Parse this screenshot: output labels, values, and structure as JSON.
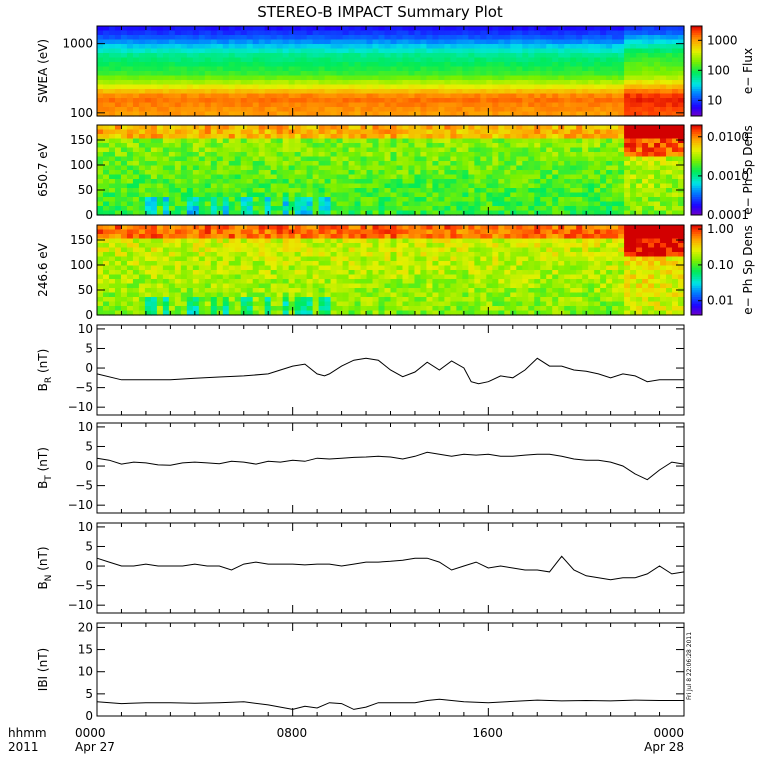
{
  "figure": {
    "title": "STEREO-B IMPACT Summary Plot",
    "date_stamp": "Fri Jul  8 22:06:28 2011",
    "x_axis_caption": [
      "hhmm",
      "2011"
    ]
  },
  "chart_data": [
    {
      "type": "heatmap",
      "id": "swea",
      "ylabel": "SWEA (eV)",
      "y_log": true,
      "ylim": [
        90,
        1800
      ],
      "yticks": [
        {
          "v": 100,
          "label": "100"
        },
        {
          "v": 1000,
          "label": "1000"
        }
      ],
      "colorbar": {
        "label": "e− Flux",
        "log": true,
        "range": [
          3,
          3000
        ],
        "ticks": [
          {
            "v": 10,
            "label": "10"
          },
          {
            "v": 100,
            "label": "100"
          },
          {
            "v": 1000,
            "label": "1000"
          }
        ]
      }
    },
    {
      "type": "heatmap",
      "id": "pad650",
      "ylabel": "650.7 eV",
      "ylim": [
        0,
        180
      ],
      "yticks": [
        {
          "v": 0,
          "label": "0"
        },
        {
          "v": 50,
          "label": "50"
        },
        {
          "v": 100,
          "label": "100"
        },
        {
          "v": 150,
          "label": "150"
        }
      ],
      "colorbar": {
        "label": "e− Ph Sp Dens",
        "log": true,
        "range": [
          0.0001,
          0.02
        ],
        "ticks": [
          {
            "v": 0.0001,
            "label": "0.0001"
          },
          {
            "v": 0.001,
            "label": "0.0010"
          },
          {
            "v": 0.01,
            "label": "0.0100"
          }
        ]
      }
    },
    {
      "type": "heatmap",
      "id": "pad246",
      "ylabel": "246.6 eV",
      "ylim": [
        0,
        180
      ],
      "yticks": [
        {
          "v": 0,
          "label": "0"
        },
        {
          "v": 50,
          "label": "50"
        },
        {
          "v": 100,
          "label": "100"
        },
        {
          "v": 150,
          "label": "150"
        }
      ],
      "colorbar": {
        "label": "e− Ph Sp Dens",
        "log": true,
        "range": [
          0.004,
          1.3
        ],
        "ticks": [
          {
            "v": 0.01,
            "label": "0.01"
          },
          {
            "v": 0.1,
            "label": "0.10"
          },
          {
            "v": 1,
            "label": "1.00"
          }
        ]
      }
    },
    {
      "type": "line",
      "id": "br",
      "ylabel": "B",
      "ylabel_sub": "R",
      "ylabel_unit": "(nT)",
      "ylim": [
        -12,
        11
      ],
      "yticks": [
        {
          "v": -10,
          "label": "−10"
        },
        {
          "v": -5,
          "label": "−5"
        },
        {
          "v": 0,
          "label": "0"
        },
        {
          "v": 5,
          "label": "5"
        },
        {
          "v": 10,
          "label": "10"
        }
      ],
      "x": [
        0,
        1,
        2,
        3,
        4,
        5,
        6,
        7,
        7.5,
        8,
        8.5,
        9,
        9.3,
        9.5,
        10,
        10.5,
        11,
        11.5,
        12,
        12.5,
        13,
        13.5,
        14,
        14.5,
        15,
        15.3,
        15.6,
        16,
        16.5,
        17,
        17.5,
        18,
        18.5,
        19,
        19.5,
        20,
        20.5,
        21,
        21.5,
        22,
        22.5,
        23,
        24
      ],
      "values": [
        -1.5,
        -3,
        -3,
        -3,
        -2.6,
        -2.3,
        -2,
        -1.5,
        -0.5,
        0.5,
        1,
        -1.5,
        -2,
        -1.5,
        0.5,
        2,
        2.5,
        2,
        -0.5,
        -2.2,
        -1,
        1.5,
        -0.5,
        1.8,
        0,
        -3.5,
        -4,
        -3.5,
        -2,
        -2.5,
        -0.5,
        2.5,
        0.5,
        0.5,
        -0.5,
        -0.8,
        -1.5,
        -2.5,
        -1.5,
        -2,
        -3.5,
        -3,
        -3
      ]
    },
    {
      "type": "line",
      "id": "bt",
      "ylabel": "B",
      "ylabel_sub": "T",
      "ylabel_unit": "(nT)",
      "ylim": [
        -12,
        11
      ],
      "yticks": [
        {
          "v": -10,
          "label": "−10"
        },
        {
          "v": -5,
          "label": "−5"
        },
        {
          "v": 0,
          "label": "0"
        },
        {
          "v": 5,
          "label": "5"
        },
        {
          "v": 10,
          "label": "10"
        }
      ],
      "x": [
        0,
        0.5,
        1,
        1.5,
        2,
        2.5,
        3,
        3.5,
        4,
        4.5,
        5,
        5.5,
        6,
        6.5,
        7,
        7.5,
        8,
        8.5,
        9,
        9.5,
        10,
        10.5,
        11,
        11.5,
        12,
        12.5,
        13,
        13.5,
        14,
        14.5,
        15,
        15.5,
        16,
        16.5,
        17,
        17.5,
        18,
        18.5,
        19,
        19.5,
        20,
        20.5,
        21,
        21.5,
        22,
        22.5,
        23,
        23.5,
        24
      ],
      "values": [
        2,
        1.5,
        0.5,
        1,
        0.8,
        0.3,
        0.2,
        0.8,
        1,
        0.8,
        0.6,
        1.2,
        1,
        0.5,
        1.2,
        1,
        1.5,
        1.2,
        2,
        1.8,
        2,
        2.2,
        2.3,
        2.5,
        2.3,
        1.8,
        2.5,
        3.5,
        3,
        2.5,
        3,
        2.8,
        3,
        2.5,
        2.5,
        2.8,
        3,
        3,
        2.5,
        1.8,
        1.5,
        1.5,
        1,
        0,
        -2,
        -3.5,
        -1,
        1,
        0.5
      ]
    },
    {
      "type": "line",
      "id": "bn",
      "ylabel": "B",
      "ylabel_sub": "N",
      "ylabel_unit": "(nT)",
      "ylim": [
        -12,
        11
      ],
      "yticks": [
        {
          "v": -10,
          "label": "−10"
        },
        {
          "v": -5,
          "label": "−5"
        },
        {
          "v": 0,
          "label": "0"
        },
        {
          "v": 5,
          "label": "5"
        },
        {
          "v": 10,
          "label": "10"
        }
      ],
      "x": [
        0,
        0.5,
        1,
        1.5,
        2,
        2.5,
        3,
        3.5,
        4,
        4.5,
        5,
        5.5,
        6,
        6.5,
        7,
        7.5,
        8,
        8.5,
        9,
        9.5,
        10,
        10.5,
        11,
        11.5,
        12,
        12.5,
        13,
        13.5,
        14,
        14.5,
        15,
        15.5,
        16,
        16.5,
        17,
        17.5,
        18,
        18.5,
        19,
        19.5,
        20,
        20.5,
        21,
        21.5,
        22,
        22.5,
        23,
        23.5,
        24
      ],
      "values": [
        2,
        1,
        0,
        0,
        0.5,
        0,
        0,
        0,
        0.5,
        0,
        0,
        -1,
        0.5,
        1,
        0.5,
        0.5,
        0.5,
        0.3,
        0.5,
        0.5,
        0,
        0.5,
        1,
        1,
        1.2,
        1.5,
        2,
        2,
        1,
        -1,
        0,
        1,
        -0.5,
        0,
        -0.5,
        -1,
        -1,
        -1.5,
        2.5,
        -1,
        -2.5,
        -3,
        -3.5,
        -3,
        -3,
        -2,
        0,
        -2,
        -1.5
      ]
    },
    {
      "type": "line",
      "id": "bmag",
      "ylabel": "IBI (nT)",
      "ylim": [
        0,
        21
      ],
      "yticks": [
        {
          "v": 0,
          "label": "0"
        },
        {
          "v": 5,
          "label": "5"
        },
        {
          "v": 10,
          "label": "10"
        },
        {
          "v": 15,
          "label": "15"
        },
        {
          "v": 20,
          "label": "20"
        }
      ],
      "x": [
        0,
        1,
        2,
        3,
        4,
        5,
        6,
        7,
        7.5,
        8,
        8.5,
        9,
        9.5,
        10,
        10.5,
        11,
        11.5,
        12,
        13,
        13.5,
        14,
        15,
        16,
        17,
        18,
        19,
        20,
        21,
        22,
        23,
        24
      ],
      "values": [
        3.2,
        2.8,
        3,
        3,
        2.9,
        3,
        3.2,
        2.5,
        2,
        1.5,
        2.2,
        1.8,
        3,
        2.8,
        1.5,
        2,
        3,
        3,
        3,
        3.5,
        3.8,
        3.2,
        3,
        3.3,
        3.6,
        3.4,
        3.5,
        3.4,
        3.6,
        3.5,
        3.5
      ]
    }
  ],
  "x_axis": {
    "range_hours": [
      0,
      24
    ],
    "ticks": [
      {
        "t": 0,
        "top": "0000",
        "bottom": "Apr 27"
      },
      {
        "t": 8,
        "top": "0800",
        "bottom": ""
      },
      {
        "t": 16,
        "top": "1600",
        "bottom": ""
      },
      {
        "t": 24,
        "top": "0000",
        "bottom": "Apr 28"
      }
    ]
  }
}
